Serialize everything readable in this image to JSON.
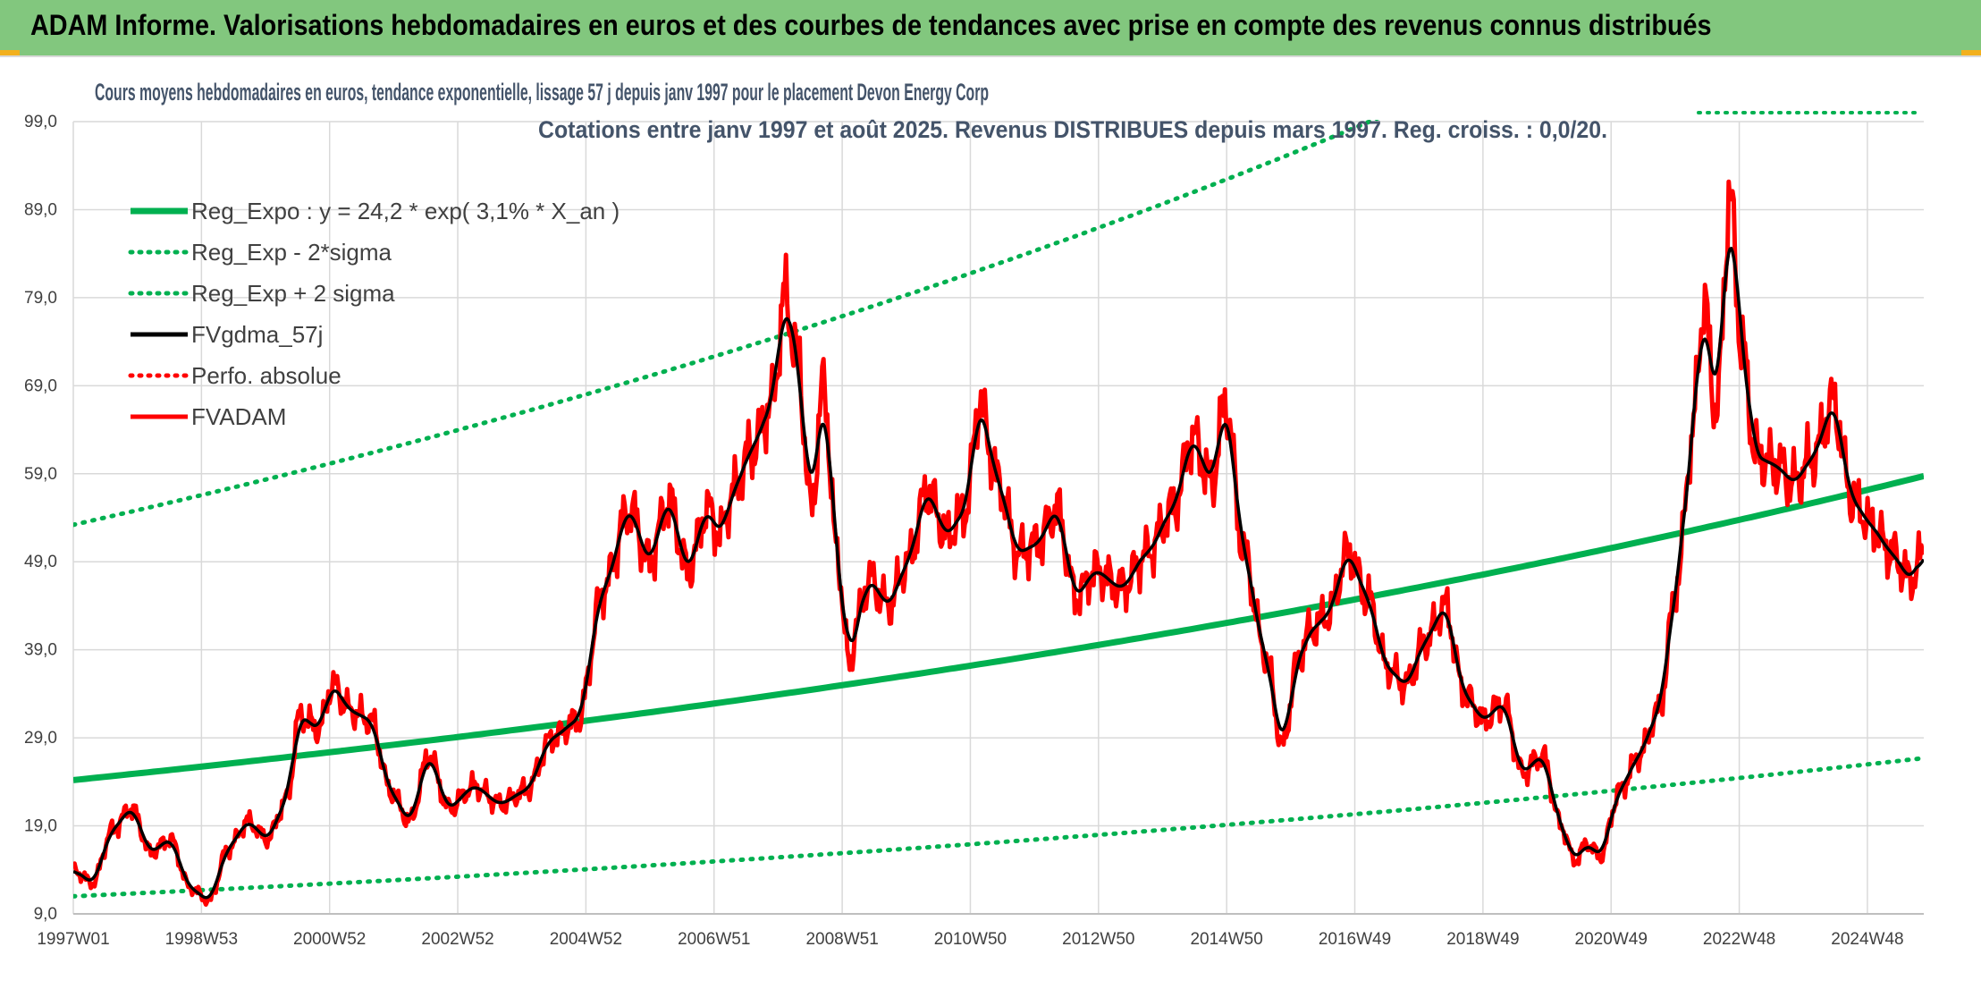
{
  "header": {
    "title": "ADAM Informe. Valorisations hebdomadaires en euros et des courbes de tendances avec prise en compte des revenus connus distribués"
  },
  "colors": {
    "banner": "#82c77e",
    "trend": "#00b050",
    "price": "#ff0000",
    "smooth": "#000000",
    "band": "#00b050",
    "subtitle": "#44546a"
  },
  "chart_data": {
    "type": "line",
    "subtitle_line1": "Cours moyens hebdomadaires en euros, tendance exponentielle, lissage 57 j depuis janv 1997 pour le placement Devon Energy Corp",
    "subtitle_line2": "Cotations entre janv 1997 et août 2025. Revenus DISTRIBUES depuis mars 1997. Reg. croiss. : 0,0/20.",
    "ylim": [
      9,
      99
    ],
    "y_ticks": [
      "99,0",
      "89,0",
      "79,0",
      "69,0",
      "59,0",
      "49,0",
      "39,0",
      "29,0",
      "19,0",
      "9,0"
    ],
    "x_ticks": [
      "1997W01",
      "1998W53",
      "2000W52",
      "2002W52",
      "2004W52",
      "2006W51",
      "2008W51",
      "2010W50",
      "2012W50",
      "2014W50",
      "2016W49",
      "2018W49",
      "2020W49",
      "2022W48",
      "2024W48"
    ],
    "x_range_years": [
      1997.0,
      2025.6
    ],
    "legend": [
      {
        "label": "Reg_Expo : y = 24,2 * exp( 3,1% *  X_an )",
        "style": "solid",
        "color": "#00b050"
      },
      {
        "label": "Reg_Exp - 2*sigma",
        "style": "dotted",
        "color": "#00b050"
      },
      {
        "label": "Reg_Exp + 2 sigma",
        "style": "dotted",
        "color": "#00b050"
      },
      {
        "label": "FVgdma_57j",
        "style": "solid",
        "color": "#000000"
      },
      {
        "label": "Perfo. absolue",
        "style": "dotted",
        "color": "#ff0000"
      },
      {
        "label": "FVADAM",
        "style": "solid",
        "color": "#ff0000"
      }
    ],
    "series": [
      {
        "name": "Reg_Expo : y = 24,2 * exp( 3,1% *  X_an )",
        "kind": "exp",
        "a": 24.2,
        "b": 0.031
      },
      {
        "name": "Reg_Exp - 2*sigma",
        "kind": "exp",
        "a": 11.0,
        "b": 0.031
      },
      {
        "name": "Reg_Exp + 2 sigma",
        "kind": "exp",
        "a": 53.2,
        "b": 0.031
      },
      {
        "name": "FVADAM",
        "kind": "points",
        "x": [
          1997.0,
          1997.3,
          1997.6,
          1997.9,
          1998.2,
          1998.5,
          1998.8,
          1999.1,
          1999.4,
          1999.7,
          2000.0,
          2000.3,
          2000.5,
          2000.8,
          2001.0,
          2001.3,
          2001.6,
          2001.9,
          2002.2,
          2002.5,
          2002.8,
          2003.2,
          2003.6,
          2004.0,
          2004.4,
          2004.8,
          2005.2,
          2005.6,
          2005.9,
          2006.2,
          2006.5,
          2006.8,
          2007.0,
          2007.2,
          2007.5,
          2007.8,
          2008.0,
          2008.2,
          2008.4,
          2008.6,
          2008.8,
          2009.0,
          2009.1,
          2009.3,
          2009.6,
          2009.9,
          2010.2,
          2010.5,
          2010.8,
          2011.0,
          2011.3,
          2011.6,
          2011.9,
          2012.2,
          2012.5,
          2012.8,
          2013.2,
          2013.6,
          2014.0,
          2014.3,
          2014.6,
          2014.8,
          2015.1,
          2015.4,
          2015.7,
          2015.9,
          2016.1,
          2016.4,
          2016.7,
          2017.0,
          2017.3,
          2017.6,
          2017.9,
          2018.2,
          2018.5,
          2018.8,
          2019.1,
          2019.4,
          2019.7,
          2020.0,
          2020.2,
          2020.4,
          2020.6,
          2020.9,
          2021.2,
          2021.5,
          2021.8,
          2022.0,
          2022.2,
          2022.4,
          2022.6,
          2022.8,
          2023.0,
          2023.3,
          2023.6,
          2023.9,
          2024.2,
          2024.5,
          2024.8,
          2025.1,
          2025.4,
          2025.6
        ],
        "values": [
          14.0,
          12.5,
          18.5,
          21.0,
          16.0,
          17.5,
          12.0,
          10.5,
          16.5,
          19.5,
          17.5,
          22.0,
          31.5,
          30.0,
          35.0,
          32.0,
          31.0,
          23.0,
          19.5,
          27.0,
          21.0,
          23.5,
          21.5,
          23.0,
          29.0,
          31.0,
          46.0,
          55.0,
          49.0,
          56.0,
          48.0,
          55.0,
          52.0,
          57.0,
          62.0,
          67.0,
          79.0,
          72.0,
          55.0,
          69.0,
          50.0,
          37.0,
          42.0,
          47.0,
          44.0,
          49.0,
          57.0,
          52.0,
          55.0,
          67.0,
          58.0,
          50.0,
          51.0,
          55.0,
          45.0,
          48.0,
          46.0,
          50.0,
          55.0,
          63.0,
          58.0,
          67.0,
          50.0,
          39.0,
          28.0,
          37.0,
          41.0,
          43.0,
          50.0,
          45.0,
          37.0,
          35.0,
          40.0,
          44.0,
          34.0,
          31.0,
          33.0,
          25.0,
          27.0,
          19.0,
          15.0,
          17.0,
          15.5,
          23.0,
          27.0,
          32.0,
          47.0,
          62.0,
          78.0,
          66.0,
          90.0,
          73.0,
          61.0,
          60.0,
          58.0,
          61.0,
          67.0,
          56.0,
          53.0,
          50.0,
          47.0,
          50.0
        ]
      },
      {
        "name": "FVgdma_57j",
        "kind": "smooth_of_FVADAM"
      }
    ]
  }
}
